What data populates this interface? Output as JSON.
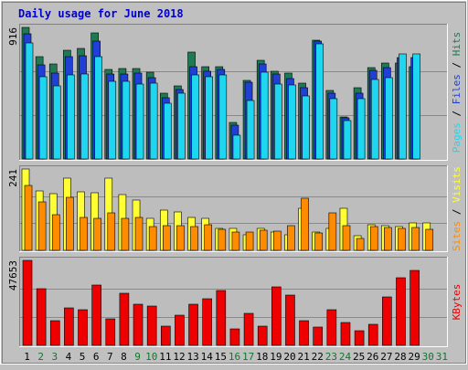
{
  "title": "Daily usage for June 2018",
  "colors": {
    "background": "#c0c0c0",
    "panel": "#bdbdbd",
    "grid": "#8a8a8a",
    "title": "#0000cc",
    "hits": "#1f7a54",
    "files": "#1f3fd6",
    "pages": "#1fd6f0",
    "visits": "#ffff33",
    "sites": "#ff8c00",
    "kbytes": "#ee0000",
    "weekend_day": "#0a7a2a",
    "weekday": "#000000"
  },
  "x_labels": [
    "1",
    "2",
    "3",
    "4",
    "5",
    "6",
    "7",
    "8",
    "9",
    "10",
    "11",
    "12",
    "13",
    "14",
    "15",
    "16",
    "17",
    "18",
    "19",
    "20",
    "21",
    "22",
    "23",
    "24",
    "25",
    "26",
    "27",
    "28",
    "29",
    "30",
    "31"
  ],
  "weekend_days": [
    2,
    3,
    9,
    10,
    16,
    17,
    23,
    24,
    30,
    31
  ],
  "chart_data": [
    {
      "type": "bar",
      "panel": "hits-files-pages",
      "ymax_label": "916",
      "ymax": 916,
      "ylabel_parts": [
        "Pages",
        "Files",
        "Hits"
      ],
      "legend_placement": "right",
      "grid": true,
      "series": [
        {
          "name": "Hits",
          "values": [
            916,
            710,
            660,
            760,
            770,
            880,
            625,
            630,
            630,
            605,
            455,
            510,
            745,
            640,
            640,
            255,
            545,
            685,
            610,
            595,
            525,
            830,
            480,
            290,
            495,
            635,
            670,
            670,
            645,
            0,
            0
          ]
        },
        {
          "name": "Files",
          "values": [
            870,
            655,
            595,
            710,
            720,
            820,
            590,
            590,
            600,
            565,
            425,
            485,
            645,
            610,
            625,
            235,
            535,
            660,
            590,
            560,
            495,
            820,
            460,
            285,
            460,
            620,
            635,
            705,
            705,
            0,
            0
          ]
        },
        {
          "name": "Pages",
          "values": [
            810,
            575,
            510,
            585,
            590,
            715,
            540,
            540,
            520,
            525,
            385,
            455,
            585,
            575,
            585,
            165,
            410,
            605,
            520,
            515,
            440,
            800,
            420,
            265,
            420,
            555,
            565,
            730,
            730,
            0,
            0
          ]
        }
      ]
    },
    {
      "type": "bar",
      "panel": "visits-sites",
      "ymax_label": "241",
      "ymax": 241,
      "ylabel_parts": [
        "Sites",
        "Visits"
      ],
      "legend_placement": "right",
      "grid": true,
      "series": [
        {
          "name": "Visits",
          "values": [
            241,
            175,
            168,
            215,
            172,
            170,
            215,
            165,
            150,
            95,
            120,
            115,
            98,
            95,
            65,
            65,
            45,
            65,
            55,
            45,
            125,
            55,
            65,
            125,
            44,
            75,
            72,
            70,
            80,
            80,
            0
          ]
        },
        {
          "name": "Sites",
          "values": [
            193,
            143,
            105,
            158,
            98,
            95,
            112,
            95,
            98,
            70,
            72,
            73,
            70,
            77,
            62,
            55,
            54,
            59,
            58,
            72,
            154,
            51,
            112,
            72,
            34,
            70,
            68,
            64,
            68,
            62,
            0
          ]
        }
      ]
    },
    {
      "type": "bar",
      "panel": "kbytes",
      "ymax_label": "47653",
      "ymax": 47653,
      "ylabel_parts": [
        "KBytes"
      ],
      "legend_placement": "right",
      "grid": true,
      "series": [
        {
          "name": "KBytes",
          "values": [
            47653,
            32000,
            14000,
            21000,
            20000,
            34000,
            15000,
            29000,
            23000,
            22000,
            11000,
            17000,
            23000,
            26000,
            31000,
            9000,
            18000,
            11000,
            33000,
            28000,
            14000,
            10000,
            20000,
            13000,
            8000,
            12000,
            27000,
            38000,
            42000,
            0,
            0
          ]
        }
      ]
    }
  ]
}
